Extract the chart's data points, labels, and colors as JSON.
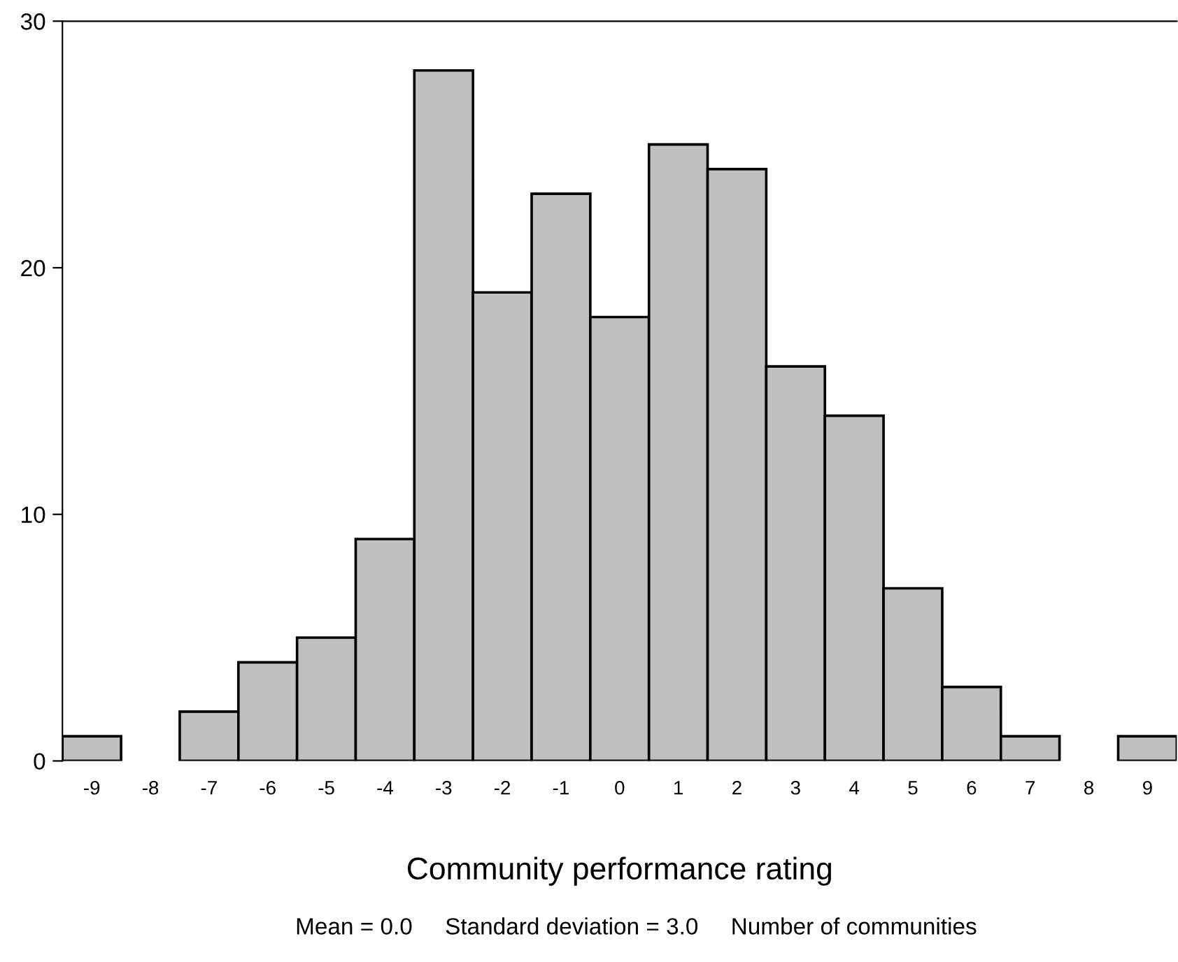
{
  "chart_data": {
    "type": "histogram",
    "xlabel": "Community performance rating",
    "bins": [
      -9.5,
      -8.5,
      -7.5,
      -6.5,
      -5.5,
      -4.5,
      -3.5,
      -2.5,
      -1.5,
      -0.5,
      0.5,
      1.5,
      2.5,
      3.5,
      4.5,
      5.5,
      6.5,
      7.5,
      8.5,
      9.5
    ],
    "values": [
      1,
      0,
      2,
      4,
      5,
      9,
      28,
      19,
      23,
      18,
      25,
      24,
      16,
      14,
      7,
      3,
      1,
      0,
      1
    ],
    "color": "#c0c0c0",
    "xlim": [
      -9.5,
      9.5
    ],
    "xticks": [
      -9,
      -8,
      -7,
      -6,
      -5,
      -4,
      -3,
      -2,
      -1,
      0,
      1,
      2,
      3,
      4,
      5,
      6,
      7,
      8,
      9
    ],
    "ylim": [
      0,
      30
    ],
    "yticks": [
      0,
      10,
      20,
      30
    ],
    "annotations": [
      "Mean = 0.0     Standard deviation = 3.0     Number of communities"
    ],
    "grid": false,
    "legend": false
  }
}
